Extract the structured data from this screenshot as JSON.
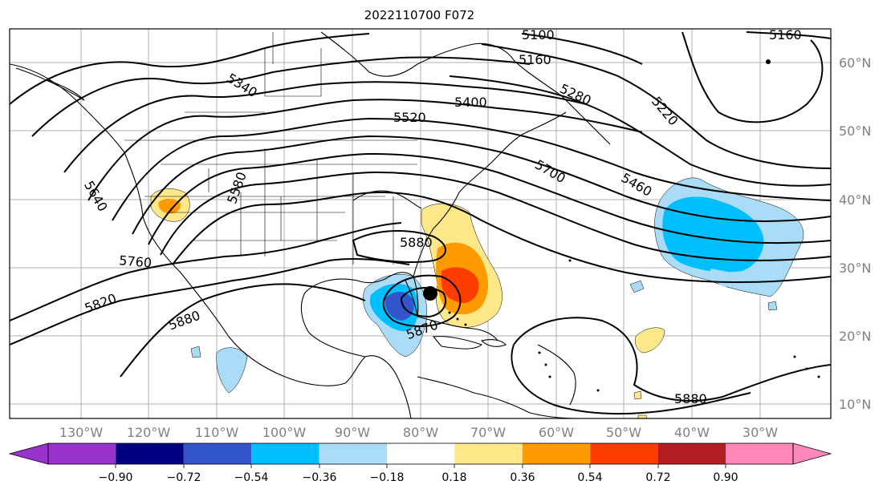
{
  "title": "2022110700 F072",
  "x_ticks": [
    "130°W",
    "120°W",
    "110°W",
    "100°W",
    "90°W",
    "80°W",
    "70°W",
    "60°W",
    "50°W",
    "40°W",
    "30°W"
  ],
  "y_ticks": [
    "60°N",
    "50°N",
    "40°N",
    "30°N",
    "20°N",
    "10°N"
  ],
  "colorbar": {
    "labels": [
      "−0.90",
      "−0.72",
      "−0.54",
      "−0.36",
      "−0.18",
      "0.18",
      "0.36",
      "0.54",
      "0.72",
      "0.90"
    ],
    "colors": [
      "#9933cc",
      "#000080",
      "#3355cc",
      "#00bfff",
      "#aadcf8",
      "#ffffff",
      "#ffe88a",
      "#ff9a00",
      "#ff3c00",
      "#b21e22",
      "#ff88b8"
    ]
  },
  "contour_labels": [
    "5100",
    "5160",
    "5160",
    "5340",
    "5280",
    "5400",
    "5520",
    "5220",
    "5580",
    "5640",
    "5700",
    "5460",
    "5880",
    "5760",
    "5820",
    "5880",
    "5870",
    "5880"
  ],
  "map": {
    "lon_range": [
      -137,
      -16
    ],
    "lat_range": [
      7,
      65
    ],
    "storm_center_color": "#000000"
  }
}
